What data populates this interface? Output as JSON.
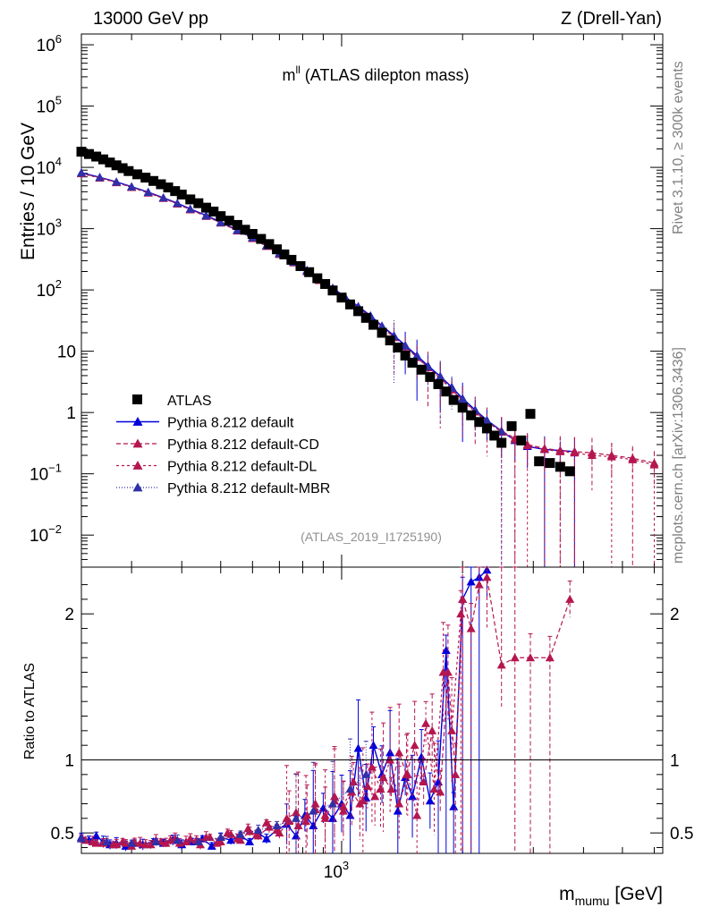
{
  "header": {
    "left": "13000 GeV pp",
    "right": "Z (Drell-Yan)"
  },
  "side_labels": {
    "rivet": "Rivet 3.1.10, ≥ 300k events",
    "mcplots": "mcplots.cern.ch [arXiv:1306.3436]"
  },
  "analysis_id": "(ATLAS_2019_I1725190)",
  "colors": {
    "atlas": "#000000",
    "default": "#0000dd",
    "cd": "#b5164f",
    "dl": "#b5164f",
    "mbr": "#3030a8"
  },
  "chart_data": [
    {
      "type": "scatter",
      "title_main": "m",
      "title_sup": "ll",
      "title_rest": " (ATLAS dilepton mass)",
      "ylabel": "Entries / 10 GeV",
      "yscale": "log",
      "ylim": [
        0.003,
        1500000
      ],
      "xscale": "log",
      "xlim": [
        225,
        6300
      ],
      "y_ticks": [
        {
          "v": 0.01,
          "b": "10",
          "e": "−2"
        },
        {
          "v": 0.1,
          "b": "10",
          "e": "−1"
        },
        {
          "v": 1,
          "b": "1",
          "e": ""
        },
        {
          "v": 10,
          "b": "10",
          "e": ""
        },
        {
          "v": 100,
          "b": "10",
          "e": "2"
        },
        {
          "v": 1000,
          "b": "10",
          "e": "3"
        },
        {
          "v": 10000,
          "b": "10",
          "e": "4"
        },
        {
          "v": 100000,
          "b": "10",
          "e": "5"
        },
        {
          "v": 1000000,
          "b": "10",
          "e": "6"
        }
      ],
      "legend_position": "middle-left",
      "series": [
        {
          "name": "ATLAS",
          "marker": "square",
          "x": [
            225,
            235,
            245,
            255,
            265,
            275,
            285,
            295,
            310,
            325,
            340,
            355,
            370,
            385,
            400,
            420,
            440,
            460,
            480,
            500,
            525,
            550,
            575,
            600,
            630,
            660,
            690,
            720,
            750,
            790,
            830,
            870,
            910,
            950,
            1000,
            1050,
            1100,
            1150,
            1200,
            1260,
            1320,
            1380,
            1440,
            1500,
            1580,
            1660,
            1740,
            1820,
            1900,
            2000,
            2100,
            2200,
            2300,
            2400,
            2500,
            2650,
            2800,
            2950,
            3100,
            3300,
            3500,
            3700
          ],
          "y": [
            18000,
            16500,
            15000,
            13500,
            12000,
            10800,
            9700,
            8700,
            7700,
            6800,
            6000,
            5300,
            4700,
            4100,
            3600,
            3000,
            2600,
            2200,
            1900,
            1600,
            1350,
            1150,
            960,
            820,
            680,
            560,
            460,
            380,
            310,
            245,
            195,
            155,
            125,
            98,
            75,
            58,
            45,
            35,
            27,
            20,
            15,
            11.5,
            8.5,
            6.5,
            5,
            3.8,
            2.9,
            2.2,
            1.6,
            1.2,
            0.9,
            0.7,
            0.55,
            0.42,
            0.32,
            0.6,
            0.35,
            0.95,
            0.16,
            0.15,
            0.13,
            0.11
          ]
        },
        {
          "name": "Pythia 8.212 default",
          "marker": "triangle-solid",
          "x": [
            225,
            250,
            275,
            300,
            330,
            360,
            390,
            420,
            460,
            500,
            550,
            600,
            650,
            700,
            760,
            820,
            880,
            950,
            1020,
            1100,
            1180,
            1260,
            1350,
            1440,
            1540,
            1640,
            1760,
            1880,
            2000,
            2150,
            2300,
            2500,
            2700,
            2900,
            3200,
            3500,
            3800
          ],
          "y": [
            8200,
            6900,
            5800,
            4850,
            3950,
            3200,
            2600,
            2100,
            1650,
            1280,
            950,
            720,
            530,
            400,
            290,
            210,
            150,
            108,
            77,
            54,
            38,
            26,
            18,
            12.5,
            8.5,
            5.8,
            3.9,
            2.6,
            1.7,
            1.1,
            0.75,
            0.5,
            0.35,
            0.28,
            0.25,
            0.24,
            0.23
          ]
        },
        {
          "name": "Pythia 8.212 default-CD",
          "marker": "triangle-dash",
          "x": [
            225,
            250,
            275,
            300,
            330,
            360,
            390,
            420,
            460,
            500,
            550,
            600,
            650,
            700,
            760,
            820,
            880,
            950,
            1020,
            1100,
            1180,
            1260,
            1350,
            1440,
            1540,
            1640,
            1760,
            1880,
            2000,
            2150,
            2300,
            2500,
            2700,
            2900,
            3200,
            3500,
            3800,
            4200,
            4700,
            5300,
            6000
          ],
          "y": [
            8000,
            6800,
            5700,
            4750,
            3850,
            3150,
            2550,
            2050,
            1600,
            1250,
            930,
            700,
            520,
            385,
            280,
            200,
            145,
            105,
            74,
            52,
            36,
            25,
            17,
            12,
            8,
            5.5,
            3.7,
            2.4,
            1.6,
            1.05,
            0.72,
            0.5,
            0.38,
            0.3,
            0.26,
            0.24,
            0.23,
            0.22,
            0.2,
            0.18,
            0.15
          ]
        },
        {
          "name": "Pythia 8.212 default-DL",
          "marker": "triangle-dash",
          "x": [
            225,
            250,
            275,
            300,
            330,
            360,
            390,
            420,
            460,
            500,
            550,
            600,
            650,
            700,
            760,
            820,
            880,
            950,
            1020,
            1100,
            1180,
            1260,
            1350,
            1440,
            1540,
            1640,
            1760,
            1880,
            2000,
            2150,
            2300,
            2500,
            2700,
            2900,
            3200,
            3500,
            3800,
            4200,
            4700,
            5300,
            6000
          ],
          "y": [
            7900,
            6700,
            5650,
            4700,
            3820,
            3120,
            2530,
            2030,
            1590,
            1240,
            920,
            690,
            515,
            380,
            278,
            198,
            143,
            104,
            73,
            51,
            35.5,
            24.5,
            16.8,
            11.8,
            7.9,
            5.4,
            3.6,
            2.35,
            1.55,
            1.02,
            0.7,
            0.48,
            0.36,
            0.29,
            0.25,
            0.23,
            0.22,
            0.2,
            0.19,
            0.17,
            0.14
          ]
        },
        {
          "name": "Pythia 8.212 default-MBR",
          "marker": "triangle-dot",
          "x": [
            225,
            250,
            275,
            300,
            330,
            360,
            390,
            420,
            460,
            500,
            550,
            600,
            650,
            700,
            760,
            820,
            880,
            950,
            1020,
            1100,
            1180,
            1260,
            1350,
            1440,
            1540,
            1640,
            1760,
            1880,
            2000,
            2150,
            2300,
            2500
          ],
          "y": [
            8100,
            6850,
            5750,
            4800,
            3900,
            3180,
            2580,
            2080,
            1620,
            1260,
            940,
            710,
            525,
            390,
            285,
            205,
            147,
            106,
            75,
            53,
            37,
            25.5,
            17.5,
            12.2,
            8.2,
            5.6,
            3.8,
            2.5,
            1.65,
            1.08,
            0.74,
            0.49
          ]
        }
      ]
    },
    {
      "type": "scatter",
      "ylabel": "Ratio to ATLAS",
      "ylim": [
        0.36,
        2.32
      ],
      "xscale": "log",
      "xlim": [
        225,
        6300
      ],
      "y_ticks": [
        {
          "v": 0.5,
          "label": "0.5"
        },
        {
          "v": 1,
          "label": "1"
        },
        {
          "v": 2,
          "label": "2"
        }
      ],
      "x_ticks": [
        {
          "v": 1000,
          "b": "10",
          "e": "3"
        }
      ],
      "xlabel_main": "m",
      "xlabel_sub": "mumu",
      "xlabel_unit": " [GeV]",
      "reference_line": 1,
      "series": [
        {
          "name": "Pythia 8.212 default",
          "x": [
            225,
            235,
            245,
            255,
            265,
            275,
            290,
            305,
            320,
            340,
            360,
            380,
            400,
            425,
            450,
            475,
            500,
            530,
            560,
            590,
            620,
            650,
            690,
            730,
            770,
            810,
            850,
            900,
            950,
            1000,
            1050,
            1100,
            1150,
            1200,
            1260,
            1320,
            1380,
            1440,
            1500,
            1580,
            1660,
            1740,
            1820,
            1900,
            2000,
            2100,
            2200,
            2300
          ],
          "y": [
            0.47,
            0.45,
            0.48,
            0.44,
            0.42,
            0.43,
            0.41,
            0.43,
            0.42,
            0.44,
            0.43,
            0.45,
            0.42,
            0.44,
            0.46,
            0.41,
            0.47,
            0.45,
            0.48,
            0.44,
            0.5,
            0.46,
            0.52,
            0.56,
            0.48,
            0.62,
            0.55,
            0.67,
            0.6,
            0.7,
            0.62,
            1.08,
            0.74,
            1.1,
            0.9,
            1.05,
            0.65,
            0.88,
            0.75,
            1.02,
            0.72,
            0.85,
            1.75,
            0.68,
            2.1,
            2.22,
            2.25,
            2.3
          ]
        },
        {
          "name": "Pythia 8.212 default-CD",
          "x": [
            225,
            240,
            255,
            270,
            285,
            300,
            315,
            335,
            355,
            375,
            395,
            420,
            445,
            470,
            500,
            530,
            560,
            590,
            620,
            660,
            700,
            740,
            780,
            820,
            860,
            910,
            960,
            1010,
            1060,
            1110,
            1160,
            1210,
            1270,
            1330,
            1390,
            1450,
            1520,
            1600,
            1680,
            1760,
            1840,
            1920,
            2000,
            2100,
            2200,
            2300,
            2500,
            2700,
            2950,
            3300,
            3700
          ],
          "y": [
            0.46,
            0.44,
            0.43,
            0.42,
            0.44,
            0.41,
            0.43,
            0.42,
            0.44,
            0.45,
            0.43,
            0.46,
            0.42,
            0.47,
            0.44,
            0.49,
            0.45,
            0.51,
            0.48,
            0.54,
            0.5,
            0.58,
            0.55,
            0.62,
            0.66,
            0.6,
            0.72,
            0.65,
            0.78,
            0.7,
            0.82,
            0.75,
            0.88,
            0.8,
            1.05,
            0.9,
            1.1,
            0.85,
            1.2,
            0.78,
            1.6,
            0.9,
            2.1,
            1.9,
            2.2,
            2.25,
            1.65,
            1.7,
            1.7,
            1.7,
            2.1
          ]
        },
        {
          "name": "Pythia 8.212 default-DL",
          "x": [
            230,
            245,
            260,
            275,
            290,
            305,
            325,
            345,
            365,
            385,
            410,
            435,
            460,
            490,
            520,
            550,
            585,
            615,
            650,
            690,
            730,
            770,
            815,
            860,
            910,
            960,
            1010,
            1070,
            1130,
            1190,
            1250,
            1320,
            1390,
            1460,
            1540,
            1620,
            1700,
            1790,
            1880,
            1980
          ],
          "y": [
            0.45,
            0.43,
            0.44,
            0.42,
            0.43,
            0.44,
            0.42,
            0.45,
            0.43,
            0.46,
            0.44,
            0.45,
            0.47,
            0.43,
            0.5,
            0.46,
            0.53,
            0.49,
            0.57,
            0.52,
            0.6,
            0.64,
            0.58,
            0.7,
            0.62,
            0.75,
            0.68,
            0.85,
            0.72,
            0.95,
            0.8,
            1.0,
            0.7,
            0.9,
            0.62,
            1.25,
            0.8,
            1.6,
            1.2,
            2.0
          ]
        },
        {
          "name": "Pythia 8.212 default-MBR",
          "x": [
            225,
            260,
            300,
            345,
            390,
            440,
            500,
            560,
            620,
            690,
            770,
            850,
            950,
            1050,
            1150
          ],
          "y": [
            0.46,
            0.44,
            0.43,
            0.44,
            0.45,
            0.44,
            0.47,
            0.49,
            0.52,
            0.55,
            0.6,
            0.65,
            0.7,
            0.8,
            0.9
          ]
        }
      ]
    }
  ]
}
